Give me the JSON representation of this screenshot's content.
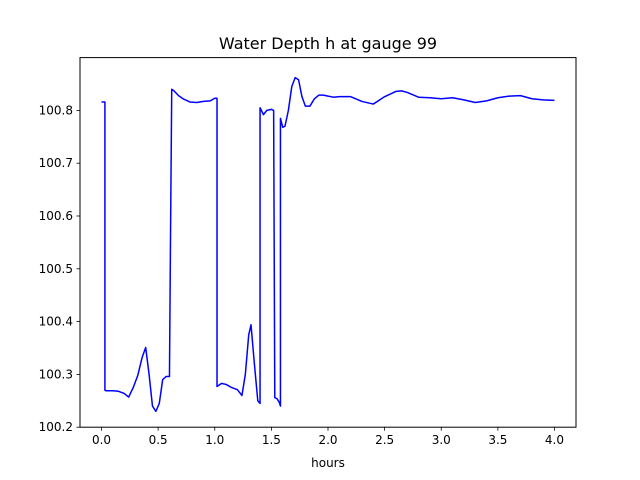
{
  "chart_data": {
    "type": "line",
    "title": "Water Depth h at gauge 99",
    "xlabel": "hours",
    "ylabel": "",
    "xlim": [
      -0.19,
      4.19
    ],
    "ylim": [
      100.2,
      100.9
    ],
    "xticks": [
      0.0,
      0.5,
      1.0,
      1.5,
      2.0,
      2.5,
      3.0,
      3.5,
      4.0
    ],
    "xtick_labels": [
      "0.0",
      "0.5",
      "1.0",
      "1.5",
      "2.0",
      "2.5",
      "3.0",
      "3.5",
      "4.0"
    ],
    "yticks": [
      100.2,
      100.3,
      100.4,
      100.5,
      100.6,
      100.7,
      100.8
    ],
    "ytick_labels": [
      "100.2",
      "100.3",
      "100.4",
      "100.5",
      "100.6",
      "100.7",
      "100.8"
    ],
    "grid": false,
    "legend": false,
    "series": [
      {
        "color": "#0000ff",
        "x": [
          0.0,
          0.03,
          0.03,
          0.04,
          0.1,
          0.15,
          0.2,
          0.24,
          0.28,
          0.32,
          0.36,
          0.39,
          0.42,
          0.45,
          0.48,
          0.51,
          0.54,
          0.57,
          0.6,
          0.61,
          0.62,
          0.64,
          0.68,
          0.72,
          0.78,
          0.84,
          0.9,
          0.96,
          1.0,
          1.02,
          1.02,
          1.06,
          1.1,
          1.15,
          1.2,
          1.24,
          1.27,
          1.3,
          1.32,
          1.35,
          1.38,
          1.4,
          1.4,
          1.43,
          1.46,
          1.5,
          1.52,
          1.53,
          1.55,
          1.57,
          1.58,
          1.58,
          1.6,
          1.62,
          1.65,
          1.68,
          1.71,
          1.74,
          1.77,
          1.8,
          1.84,
          1.88,
          1.92,
          1.96,
          2.0,
          2.05,
          2.1,
          2.2,
          2.3,
          2.4,
          2.5,
          2.6,
          2.65,
          2.7,
          2.8,
          2.9,
          3.0,
          3.1,
          3.2,
          3.3,
          3.4,
          3.5,
          3.6,
          3.7,
          3.8,
          3.9,
          4.0
        ],
        "y": [
          100.816,
          100.816,
          100.27,
          100.269,
          100.269,
          100.268,
          100.264,
          100.257,
          100.275,
          100.298,
          100.333,
          100.351,
          100.3,
          100.24,
          100.23,
          100.245,
          100.29,
          100.296,
          100.296,
          100.58,
          100.84,
          100.837,
          100.828,
          100.822,
          100.816,
          100.815,
          100.817,
          100.818,
          100.823,
          100.823,
          100.277,
          100.283,
          100.281,
          100.275,
          100.271,
          100.26,
          100.3,
          100.375,
          100.394,
          100.32,
          100.25,
          100.245,
          100.805,
          100.792,
          100.8,
          100.802,
          100.8,
          100.256,
          100.254,
          100.247,
          100.24,
          100.785,
          100.768,
          100.77,
          100.8,
          100.845,
          100.862,
          100.858,
          100.826,
          100.808,
          100.808,
          100.822,
          100.829,
          100.829,
          100.827,
          100.825,
          100.826,
          100.826,
          100.817,
          100.812,
          100.826,
          100.836,
          100.837,
          100.834,
          100.825,
          100.824,
          100.822,
          100.824,
          100.82,
          100.815,
          100.818,
          100.824,
          100.827,
          100.828,
          100.822,
          100.82,
          100.819
        ]
      }
    ]
  }
}
